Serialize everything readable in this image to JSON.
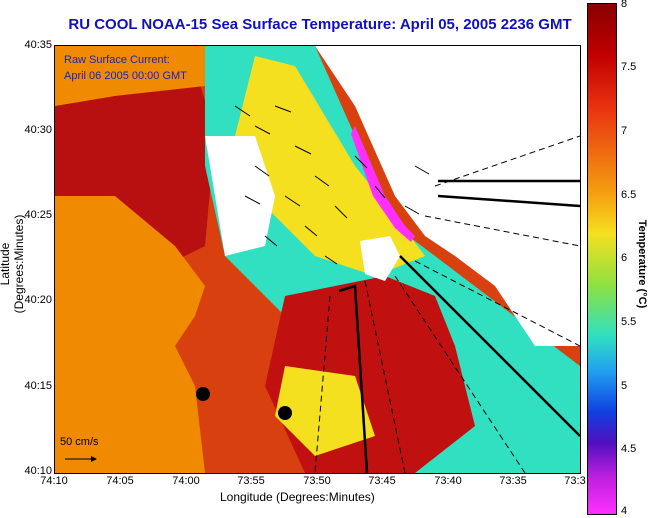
{
  "title": "RU COOL  NOAA-15  Sea Surface Temperature:  April 05, 2005 2236 GMT",
  "legend": {
    "line1": "Raw Surface Current:",
    "line2": "April 06 2005 00:00 GMT",
    "scale": "50 cm/s"
  },
  "axes": {
    "x_label": "Longitude (Degrees:Minutes)",
    "y_label": "Latitude (Degrees:Minutes)",
    "x_ticks": [
      "74:10",
      "74:05",
      "74:00",
      "73:55",
      "73:50",
      "73:45",
      "73:40",
      "73:35",
      "73:3"
    ],
    "y_ticks": [
      "40:35",
      "40:30",
      "40:25",
      "40:20",
      "40:15",
      "40:10"
    ]
  },
  "colorbar": {
    "label": "Temperature (°C)",
    "ticks": [
      "8",
      "7.5",
      "7",
      "6.5",
      "6",
      "5.5",
      "5",
      "4.5",
      "4"
    ],
    "colors": [
      "#8a0000",
      "#e83010",
      "#f5a510",
      "#f5e020",
      "#30e0c0",
      "#1040e0",
      "#ff30ff"
    ]
  },
  "map": {
    "land_color": "#f08a00",
    "mask_color": "#ffffff"
  }
}
